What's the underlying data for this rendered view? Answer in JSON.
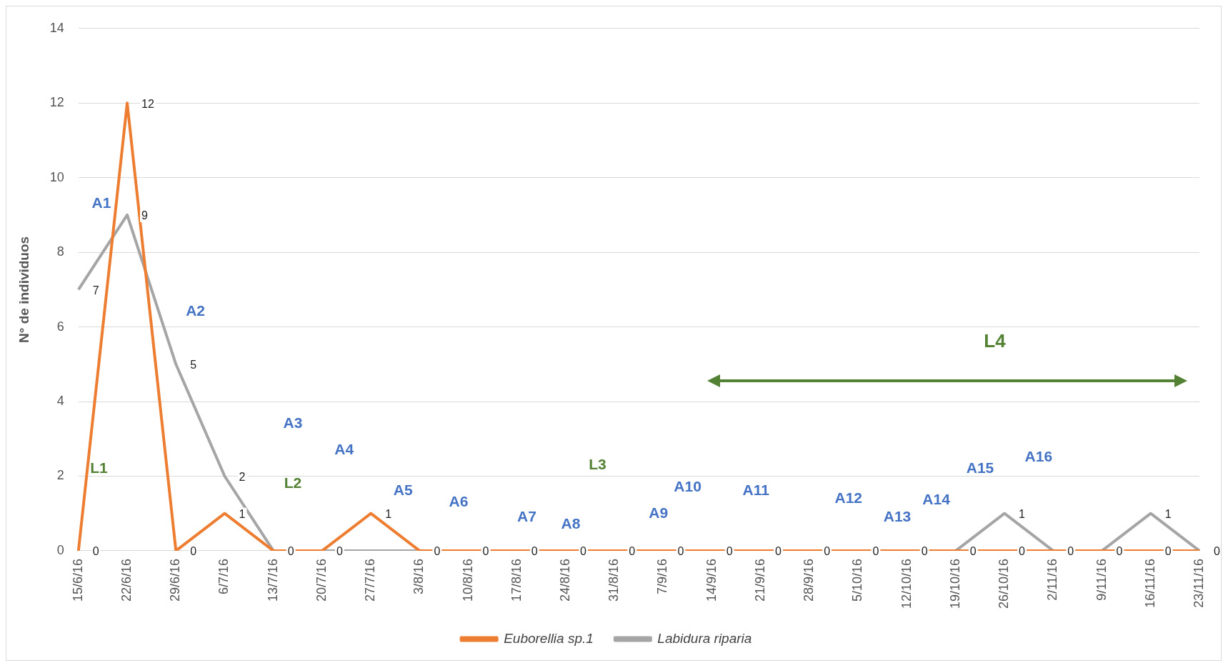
{
  "chart_data": {
    "type": "line",
    "ylabel": "N° de individuos",
    "categories": [
      "15/6/16",
      "22/6/16",
      "29/6/16",
      "6/7/16",
      "13/7/16",
      "20/7/16",
      "27/7/16",
      "3/8/16",
      "10/8/16",
      "17/8/16",
      "24/8/16",
      "31/8/16",
      "7/9/16",
      "14/9/16",
      "21/9/16",
      "28/9/16",
      "5/10/16",
      "12/10/16",
      "19/10/16",
      "26/10/16",
      "2/11/16",
      "9/11/16",
      "16/11/16",
      "23/11/16"
    ],
    "series": [
      {
        "name": "Euborellia sp.1",
        "color": "#ed7d31",
        "values": [
          0,
          12,
          0,
          1,
          0,
          0,
          1,
          0,
          0,
          0,
          0,
          0,
          0,
          0,
          0,
          0,
          0,
          0,
          0,
          0,
          0,
          0,
          0,
          0
        ],
        "value_labels": [
          "0",
          "12",
          "0",
          "1",
          "0",
          "0",
          "1",
          "0",
          "0",
          "0",
          "0",
          "0",
          "0",
          "0",
          "0",
          "0",
          "0",
          "0",
          "0",
          "0",
          "0",
          "0",
          "0",
          "0"
        ]
      },
      {
        "name": "Labidura riparia",
        "color": "#a5a5a5",
        "values": [
          7,
          9,
          5,
          2,
          0,
          0,
          0,
          0,
          0,
          0,
          0,
          0,
          0,
          0,
          0,
          0,
          0,
          0,
          0,
          1,
          0,
          0,
          1,
          0
        ],
        "value_labels": [
          "7",
          "9",
          "5",
          "2",
          null,
          null,
          null,
          null,
          null,
          null,
          null,
          null,
          null,
          null,
          null,
          null,
          null,
          null,
          null,
          "1",
          null,
          null,
          "1",
          null
        ]
      }
    ],
    "ylim": [
      0,
      14
    ],
    "yticks": [
      0,
      2,
      4,
      6,
      8,
      10,
      12,
      14
    ],
    "grid": "y",
    "legend": "bottom",
    "marker": "none",
    "annotations": [
      "A1",
      "L1",
      "A2",
      "A3",
      "L2",
      "A4",
      "A5",
      "A6",
      "A7",
      "A8",
      "L3",
      "A9",
      "A10",
      "A11",
      "A12",
      "A13",
      "A14",
      "A15",
      "A16",
      "L4"
    ]
  }
}
